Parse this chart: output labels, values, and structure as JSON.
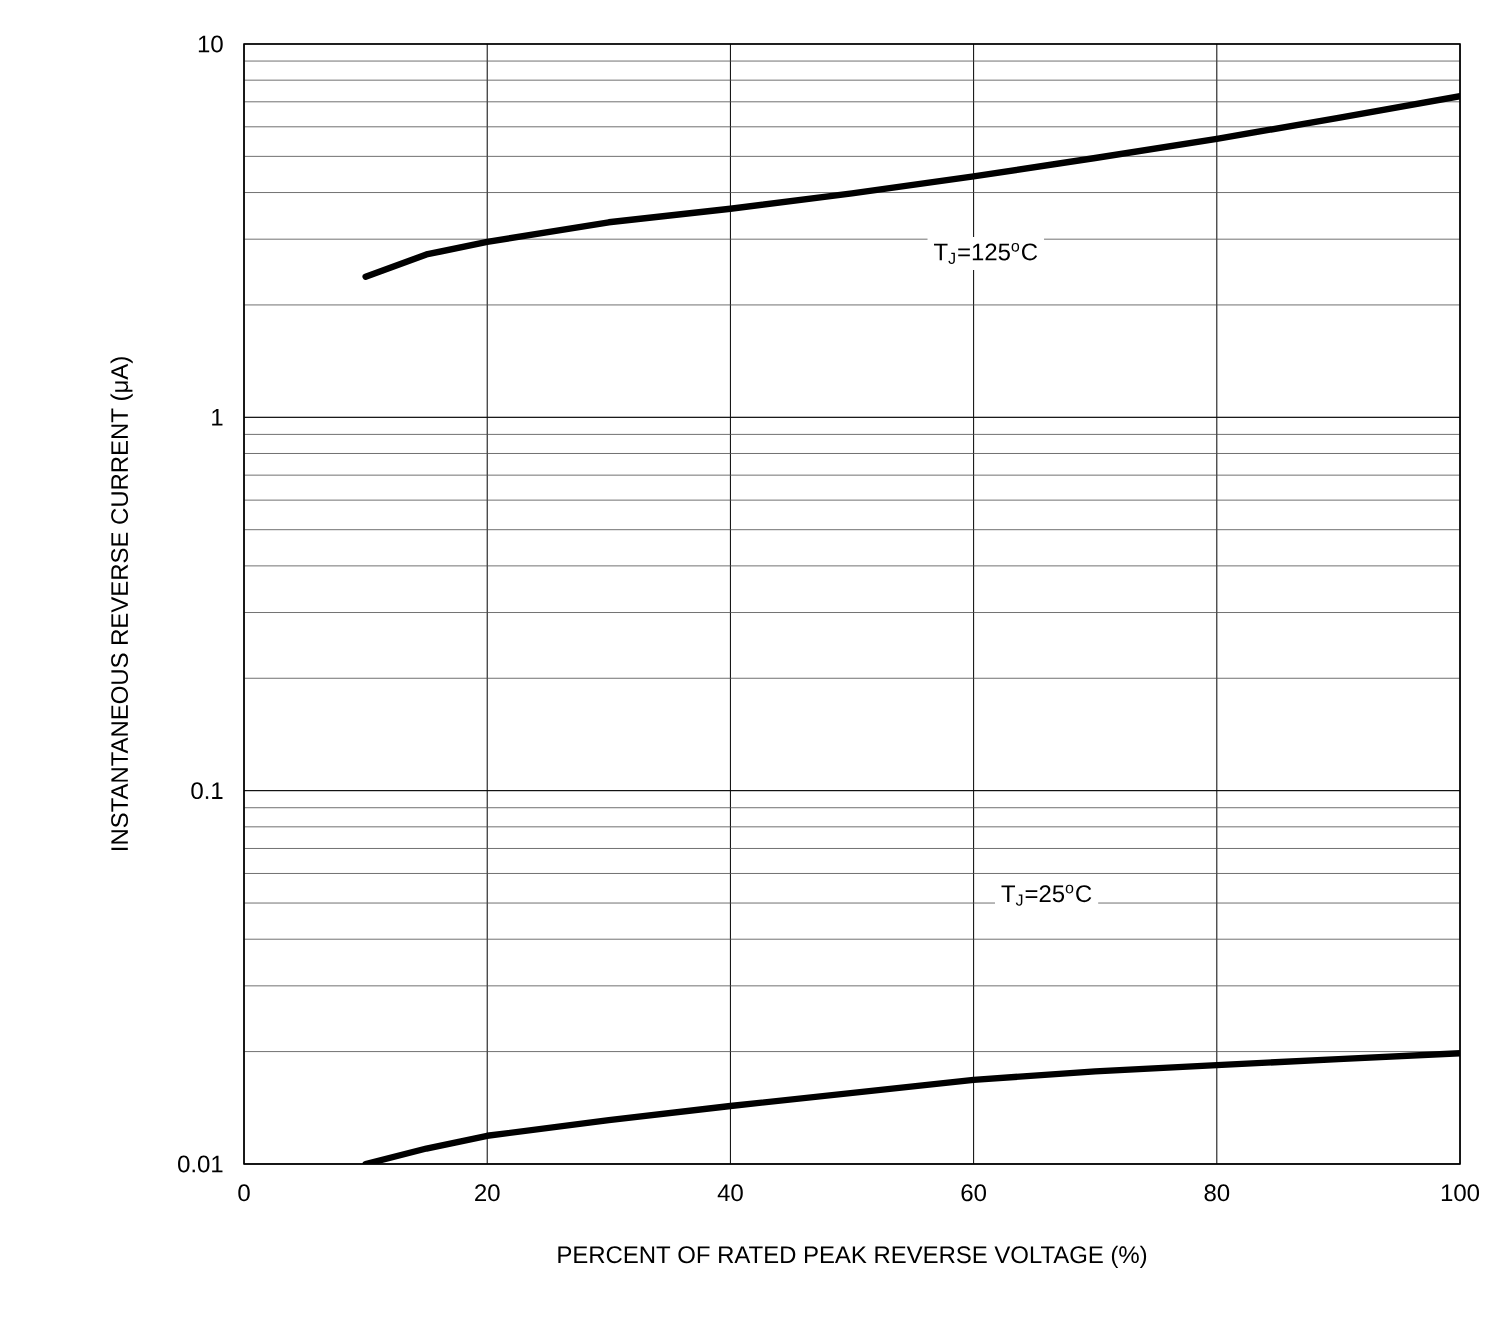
{
  "chart_data": {
    "type": "line",
    "xlabel": "PERCENT OF RATED PEAK REVERSE VOLTAGE (%)",
    "ylabel": "INSTANTANEOUS REVERSE CURRENT (μA)",
    "xlim": [
      0,
      100
    ],
    "xticks": [
      0,
      20,
      40,
      60,
      80,
      100
    ],
    "ylim": [
      0.01,
      10
    ],
    "yticks": [
      0.01,
      0.1,
      1,
      10
    ],
    "log": "y",
    "grid": true,
    "marker": "none",
    "line_style": "solid",
    "series": [
      {
        "color": "#000000",
        "x": [
          10,
          15,
          20,
          30,
          40,
          50,
          60,
          70,
          80,
          90,
          100
        ],
        "values": [
          2.38,
          2.73,
          2.95,
          3.33,
          3.62,
          3.98,
          4.42,
          4.95,
          5.57,
          6.34,
          7.25
        ]
      },
      {
        "color": "#000000",
        "x": [
          10,
          15,
          20,
          30,
          40,
          50,
          60,
          70,
          80,
          90,
          100
        ],
        "values": [
          0.01,
          0.011,
          0.0119,
          0.0131,
          0.0143,
          0.0155,
          0.0168,
          0.0177,
          0.0184,
          0.0191,
          0.0198
        ]
      }
    ],
    "annotations": [
      "T$_{J}$=125$^{o}$C",
      "T$_{J}$=25$^{o}$C"
    ]
  }
}
